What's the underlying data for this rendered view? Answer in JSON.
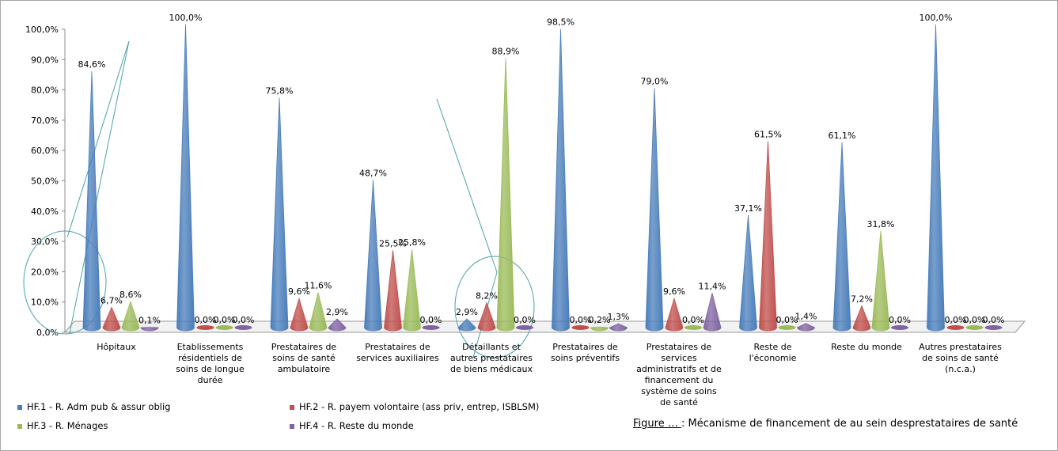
{
  "chart_data": {
    "type": "bar",
    "style": "3d-cone",
    "ylim": [
      0,
      100
    ],
    "yticks": [
      "0,0%",
      "10,0%",
      "20,0%",
      "30,0%",
      "40,0%",
      "50,0%",
      "60,0%",
      "70,0%",
      "80,0%",
      "90,0%",
      "100,0%"
    ],
    "categories": [
      "Hôpitaux",
      "Etablissements résidentiels de soins de longue durée",
      "Prestataires de soins de santé ambulatoire",
      "Prestataires de services auxiliaires",
      "Détaillants et autres prestataires de biens médicaux",
      "Prestataires de soins préventifs",
      "Prestataires de services administratifs et de financement du système de soins de santé",
      "Reste de l'économie",
      "Reste du monde",
      "Autres prestataires de soins de santé (n.c.a.)"
    ],
    "series": [
      {
        "name": "HF.1 - R. Adm pub & assur oblig",
        "color": "#4a7ebb",
        "values": [
          84.6,
          100.0,
          75.8,
          48.7,
          2.9,
          98.5,
          79.0,
          37.1,
          61.1,
          100.0
        ],
        "labels": [
          "84,6%",
          "100,0%",
          "75,8%",
          "48,7%",
          "2,9%",
          "98,5%",
          "79,0%",
          "37,1%",
          "61,1%",
          "100,0%"
        ]
      },
      {
        "name": "HF.2 - R. payem volontaire (ass priv, entrep, ISBLSM)",
        "color": "#c0504d",
        "values": [
          6.7,
          0.0,
          9.6,
          25.5,
          8.2,
          0.0,
          9.6,
          61.5,
          7.2,
          0.0
        ],
        "labels": [
          "6,7%",
          "0,0%",
          "9,6%",
          "25,5%",
          "8,2%",
          "0,0%",
          "9,6%",
          "61,5%",
          "7,2%",
          "0,0%"
        ]
      },
      {
        "name": "HF.3 - R. Ménages",
        "color": "#9bbb59",
        "values": [
          8.6,
          0.0,
          11.6,
          25.8,
          88.9,
          0.2,
          0.0,
          0.0,
          31.8,
          0.0
        ],
        "labels": [
          "8,6%",
          "0,0%",
          "11,6%",
          "25,8%",
          "88,9%",
          "0,2%",
          "0,0%",
          "0,0%",
          "31,8%",
          "0,0%"
        ]
      },
      {
        "name": "HF.4 - R. Reste du monde",
        "color": "#8064a2",
        "values": [
          0.1,
          0.0,
          2.9,
          0.0,
          0.0,
          1.3,
          11.4,
          1.4,
          0.0,
          0.0
        ],
        "labels": [
          "0,1%",
          "0,0%",
          "2,9%",
          "0,0%",
          "0,0%",
          "1,3%",
          "11,4%",
          "1,4%",
          "0,0%",
          "0,0%"
        ]
      }
    ],
    "legend_position": "bottom-left",
    "grid": false
  },
  "caption": {
    "figure_label": "Figure … ",
    "text": ": Mécanisme de financement de au sein desprestataires de santé"
  }
}
